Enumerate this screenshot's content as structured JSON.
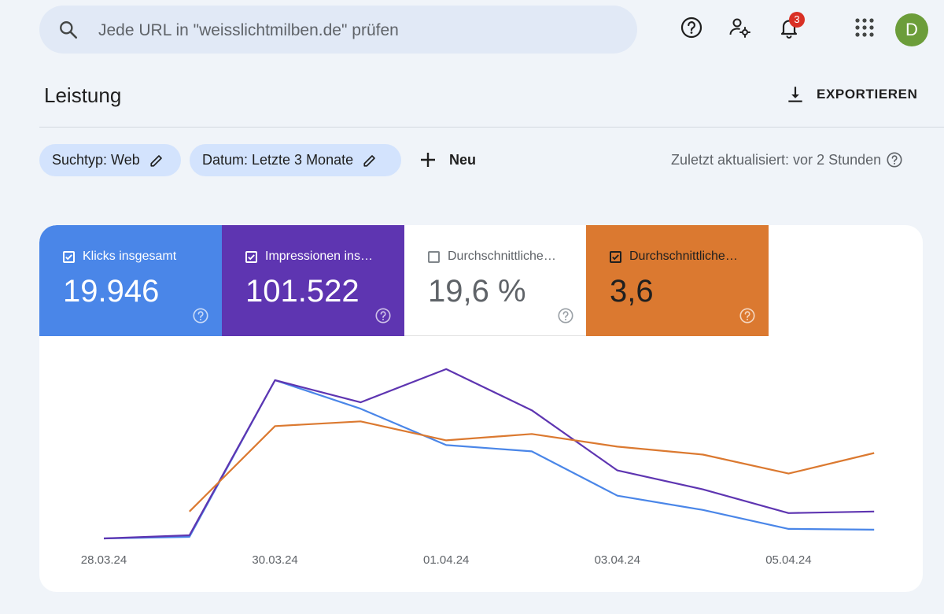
{
  "search": {
    "placeholder": "Jede URL in \"weisslichtmilben.de\" prüfen"
  },
  "header": {
    "notification_count": "3",
    "avatar_letter": "D"
  },
  "page": {
    "title": "Leistung",
    "export_label": "EXPORTIEREN"
  },
  "filters": {
    "chips": [
      "Suchtyp: Web",
      "Datum: Letzte 3 Monate"
    ],
    "new_label": "Neu",
    "updated_text": "Zuletzt aktualisiert: vor 2 Stunden"
  },
  "metrics": [
    {
      "label": "Klicks insgesamt",
      "value": "19.946",
      "checked": true,
      "color": "#4a86e8"
    },
    {
      "label": "Impressionen ins…",
      "value": "101.522",
      "checked": true,
      "color": "#5e35b1"
    },
    {
      "label": "Durchschnittliche…",
      "value": "19,6 %",
      "checked": false,
      "color": "#ffffff"
    },
    {
      "label": "Durchschnittliche…",
      "value": "3,6",
      "checked": true,
      "color": "#db7930"
    }
  ],
  "chart_data": {
    "type": "line",
    "x_ticks": [
      "28.03.24",
      "30.03.24",
      "01.04.24",
      "03.04.24",
      "05.04.24"
    ],
    "x_index_of_ticks": [
      0,
      2,
      4,
      6,
      8
    ],
    "series": [
      {
        "color": "#4a86e8",
        "values": [
          0.0,
          0.01,
          1.0,
          0.82,
          0.59,
          0.55,
          0.27,
          0.18,
          0.06,
          0.055
        ]
      },
      {
        "color": "#5e35b1",
        "values": [
          0.0,
          0.02,
          1.0,
          0.86,
          1.07,
          0.81,
          0.43,
          0.31,
          0.16,
          0.17
        ]
      },
      {
        "color": "#db7930",
        "x_start": 1,
        "values": [
          null,
          0.17,
          0.71,
          0.74,
          0.62,
          0.66,
          0.58,
          0.53,
          0.41,
          0.54
        ]
      }
    ]
  }
}
